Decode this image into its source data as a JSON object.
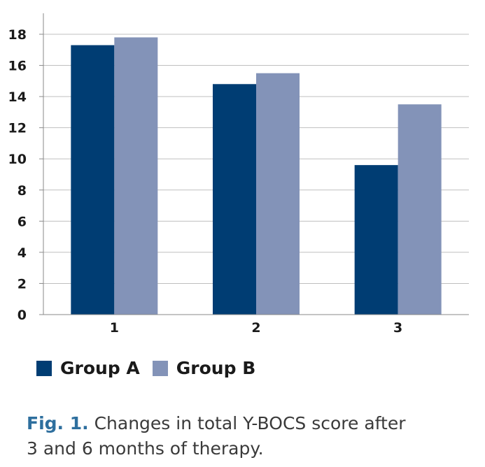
{
  "chart_data": {
    "type": "bar",
    "categories": [
      "1",
      "2",
      "3"
    ],
    "series": [
      {
        "name": "Group A",
        "values": [
          17.3,
          14.8,
          9.6
        ],
        "color": "#003d73"
      },
      {
        "name": "Group B",
        "values": [
          17.8,
          15.5,
          13.5
        ],
        "color": "#8393b8"
      }
    ],
    "ylim": [
      0,
      18
    ],
    "yticks": [
      "0",
      "2",
      "4",
      "6",
      "8",
      "10",
      "12",
      "14",
      "16",
      "18"
    ],
    "grid": true,
    "legend_position": "bottom-left"
  },
  "caption": {
    "prefix": "Fig. 1.",
    "line1": " Changes in total Y-BOCS score after",
    "line2": "3 and 6 months of therapy."
  }
}
